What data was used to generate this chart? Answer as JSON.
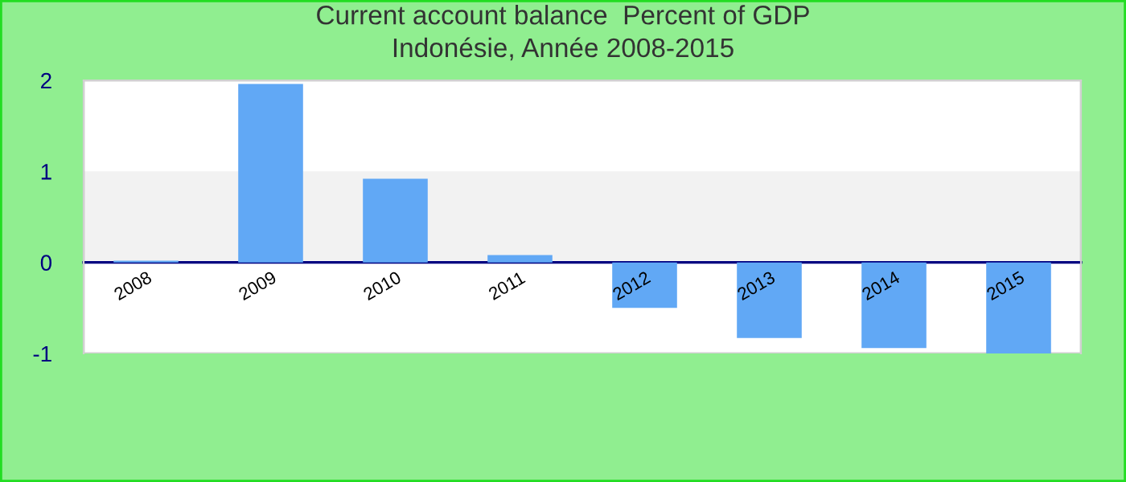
{
  "chart_data": {
    "type": "bar",
    "title": "Current account balance  Percent of GDP\nIndonésie, Année 2008-2015",
    "categories": [
      "2008",
      "2009",
      "2010",
      "2011",
      "2012",
      "2013",
      "2014",
      "2015"
    ],
    "values": [
      0.02,
      1.96,
      0.92,
      0.08,
      -0.5,
      -0.83,
      -0.94,
      -1.0
    ],
    "color": "#61a8f5",
    "ylim": [
      -1,
      2
    ],
    "yticks": [
      -1,
      0,
      1,
      2
    ],
    "bands": [
      {
        "axis": "y",
        "from": 0,
        "to": 1,
        "color": "#f2f2f2"
      }
    ],
    "grid": false
  }
}
